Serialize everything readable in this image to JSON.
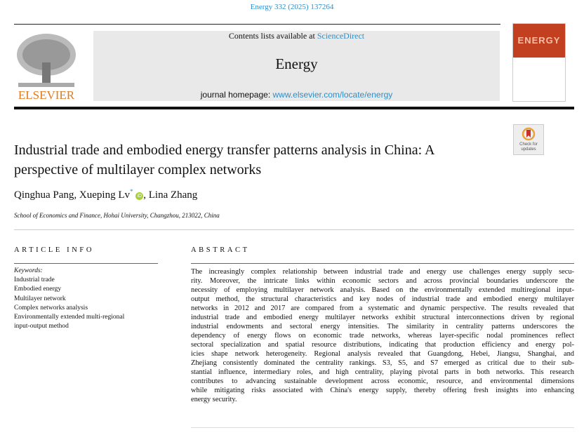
{
  "header": {
    "citation": "Energy 332 (2025) 137264",
    "contents_prefix": "Contents lists available at ",
    "contents_link": "ScienceDirect",
    "journal_name": "Energy",
    "homepage_prefix": "journal homepage: ",
    "homepage_link": "www.elsevier.com/locate/energy",
    "publisher_logo": "ELSEVIER",
    "cover_title": "ENERGY",
    "check_updates": "Check for updates"
  },
  "article": {
    "title": "Industrial trade and embodied energy transfer patterns analysis in China: A perspective of multilayer complex networks",
    "authors": [
      {
        "name": "Qinghua Pang"
      },
      {
        "name": "Xueping Lv",
        "mark": "*",
        "orcid": true
      },
      {
        "name": "Lina Zhang"
      }
    ],
    "affiliation": "School of Economics and Finance, Hohai University, Changzhou, 213022, China"
  },
  "article_info": {
    "heading": "ARTICLE INFO",
    "keywords_label": "Keywords:",
    "keywords": [
      "Industrial trade",
      "Embodied energy",
      "Multilayer network",
      "Complex networks analysis",
      "Environmentally extended multi-regional",
      "input-output method"
    ]
  },
  "abstract": {
    "heading": "ABSTRACT",
    "lines": [
      "The increasingly complex relationship between industrial trade and energy use challenges energy supply secu-",
      "rity. Moreover, the intricate links within economic sectors and across provincial boundaries underscore the",
      "necessity of employing multilayer network analysis. Based on the environmentally extended multiregional input-",
      "output method, the structural characteristics and key nodes of industrial trade and embodied energy multilayer",
      "networks in 2012 and 2017 are compared from a systematic and dynamic perspective. The results revealed that",
      "industrial trade and embodied energy multilayer networks exhibit structural interconnections driven by regional",
      "industrial endowments and sectoral energy intensities. The similarity in centrality patterns underscores the",
      "dependency of energy flows on economic trade networks, whereas layer-specific nodal prominences reflect",
      "sectoral specialization and spatial resource distributions, indicating that production efficiency and energy pol-",
      "icies shape network heterogeneity. Regional analysis revealed that Guangdong, Hebei, Jiangsu, Shanghai, and",
      "Zhejiang consistently dominated the centrality rankings. S3, S5, and S7 emerged as critical due to their sub-",
      "stantial influence, intermediary roles, and high centrality, playing pivotal parts in both networks. This research",
      "contributes to advancing sustainable development across economic, resource, and environmental dimensions",
      "while mitigating risks associated with China's energy supply, thereby offering fresh insights into enhancing",
      "energy security."
    ]
  },
  "colors": {
    "link": "#2a8fc9",
    "elsevier_orange": "#e07b1f",
    "cover_red": "#c2401f",
    "orcid_green": "#a6ce39"
  }
}
